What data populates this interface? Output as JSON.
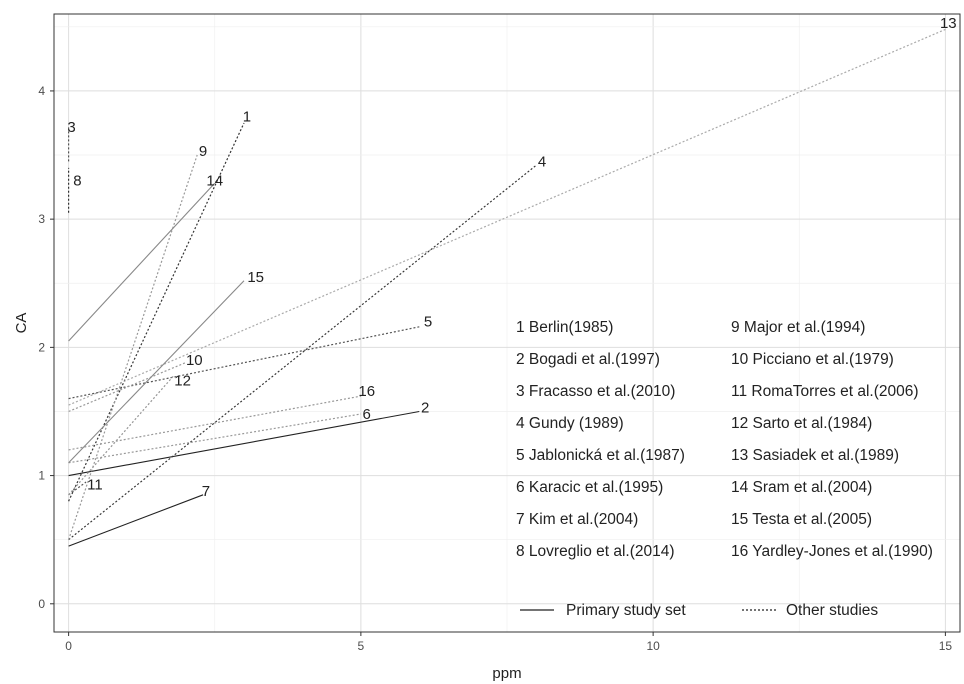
{
  "chart_data": {
    "type": "line",
    "title": "",
    "xlabel": "ppm",
    "ylabel": "CA",
    "xlim": [
      -0.25,
      15.25
    ],
    "ylim": [
      -0.22,
      4.6
    ],
    "x_ticks": [
      0,
      5,
      10,
      15
    ],
    "x_tick_labels": [
      "0",
      "5",
      "10",
      "15"
    ],
    "y_ticks": [
      0,
      1,
      2,
      3,
      4
    ],
    "y_tick_labels": [
      "0",
      "1",
      "2",
      "3",
      "4"
    ],
    "grid": true,
    "legend_position": "bottom-right",
    "legend": {
      "line_types": [
        {
          "label": "Primary study set",
          "style": "solid"
        },
        {
          "label": "Other studies",
          "style": "dotted"
        }
      ],
      "studies": [
        {
          "id": "1",
          "label": "Berlin(1985)"
        },
        {
          "id": "2",
          "label": "Bogadi et al.(1997)"
        },
        {
          "id": "3",
          "label": "Fracasso et al.(2010)"
        },
        {
          "id": "4",
          "label": "Gundy (1989)"
        },
        {
          "id": "5",
          "label": "Jablonická et al.(1987)"
        },
        {
          "id": "6",
          "label": "Karacic et al.(1995)"
        },
        {
          "id": "7",
          "label": "Kim et al.(2004)"
        },
        {
          "id": "8",
          "label": "Lovreglio et al.(2014)"
        },
        {
          "id": "9",
          "label": "Major et al.(1994)"
        },
        {
          "id": "10",
          "label": "Picciano et al.(1979)"
        },
        {
          "id": "11",
          "label": "RomaTorres et al.(2006)"
        },
        {
          "id": "12",
          "label": "Sarto et al.(1984)"
        },
        {
          "id": "13",
          "label": "Sasiadek et al.(1989)"
        },
        {
          "id": "14",
          "label": "Sram et al.(2004)"
        },
        {
          "id": "15",
          "label": "Testa et al.(2005)"
        },
        {
          "id": "16",
          "label": "Yardley-Jones et al.(1990)"
        }
      ]
    },
    "series": [
      {
        "id": "1",
        "style": "dotted",
        "color": "#333333",
        "x": [
          0,
          3.0
        ],
        "y": [
          0.8,
          3.75
        ]
      },
      {
        "id": "2",
        "style": "solid",
        "color": "#222222",
        "x": [
          0,
          6.0
        ],
        "y": [
          1.0,
          1.5
        ]
      },
      {
        "id": "3",
        "style": "dotted",
        "color": "#555555",
        "x": [
          0,
          0
        ],
        "y": [
          3.45,
          3.72
        ]
      },
      {
        "id": "4",
        "style": "dotted",
        "color": "#333333",
        "x": [
          0,
          8.0
        ],
        "y": [
          0.5,
          3.42
        ]
      },
      {
        "id": "5",
        "style": "dotted",
        "color": "#555555",
        "x": [
          0,
          6.0
        ],
        "y": [
          1.6,
          2.16
        ]
      },
      {
        "id": "6",
        "style": "dotted",
        "color": "#999999",
        "x": [
          0,
          5.0
        ],
        "y": [
          1.1,
          1.48
        ]
      },
      {
        "id": "7",
        "style": "solid",
        "color": "#222222",
        "x": [
          0,
          2.3
        ],
        "y": [
          0.45,
          0.85
        ]
      },
      {
        "id": "8",
        "style": "dotted",
        "color": "#333333",
        "x": [
          0,
          0
        ],
        "y": [
          3.05,
          3.4
        ]
      },
      {
        "id": "9",
        "style": "dotted",
        "color": "#999999",
        "x": [
          0,
          2.2
        ],
        "y": [
          0.5,
          3.5
        ]
      },
      {
        "id": "10",
        "style": "dotted",
        "color": "#999999",
        "x": [
          0,
          2.0
        ],
        "y": [
          1.5,
          1.88
        ]
      },
      {
        "id": "11",
        "style": "dotted",
        "color": "#555555",
        "x": [
          0,
          0.3
        ],
        "y": [
          0.85,
          0.95
        ]
      },
      {
        "id": "12",
        "style": "dotted",
        "color": "#999999",
        "x": [
          0,
          1.8
        ],
        "y": [
          0.85,
          1.78
        ]
      },
      {
        "id": "13",
        "style": "dotted",
        "color": "#aaaaaa",
        "x": [
          0,
          15.0
        ],
        "y": [
          1.55,
          4.48
        ]
      },
      {
        "id": "14",
        "style": "solid",
        "color": "#888888",
        "x": [
          0,
          2.5
        ],
        "y": [
          2.05,
          3.28
        ]
      },
      {
        "id": "15",
        "style": "solid",
        "color": "#888888",
        "x": [
          0,
          3.0
        ],
        "y": [
          1.1,
          2.52
        ]
      },
      {
        "id": "16",
        "style": "dotted",
        "color": "#999999",
        "x": [
          0,
          5.0
        ],
        "y": [
          1.2,
          1.62
        ]
      }
    ],
    "annotations": [
      {
        "text": "1",
        "x": 3.05,
        "y": 3.8
      },
      {
        "text": "2",
        "x": 6.1,
        "y": 1.53
      },
      {
        "text": "3",
        "x": 0.05,
        "y": 3.72
      },
      {
        "text": "4",
        "x": 8.1,
        "y": 3.45
      },
      {
        "text": "5",
        "x": 6.15,
        "y": 2.2
      },
      {
        "text": "6",
        "x": 5.1,
        "y": 1.48
      },
      {
        "text": "7",
        "x": 2.35,
        "y": 0.88
      },
      {
        "text": "8",
        "x": 0.15,
        "y": 3.3
      },
      {
        "text": "9",
        "x": 2.3,
        "y": 3.53
      },
      {
        "text": "10",
        "x": 2.15,
        "y": 1.9
      },
      {
        "text": "11",
        "x": 0.45,
        "y": 0.93
      },
      {
        "text": "12",
        "x": 1.95,
        "y": 1.74
      },
      {
        "text": "13",
        "x": 15.05,
        "y": 4.53
      },
      {
        "text": "14",
        "x": 2.5,
        "y": 3.3
      },
      {
        "text": "15",
        "x": 3.2,
        "y": 2.55
      },
      {
        "text": "16",
        "x": 5.1,
        "y": 1.66
      }
    ]
  }
}
